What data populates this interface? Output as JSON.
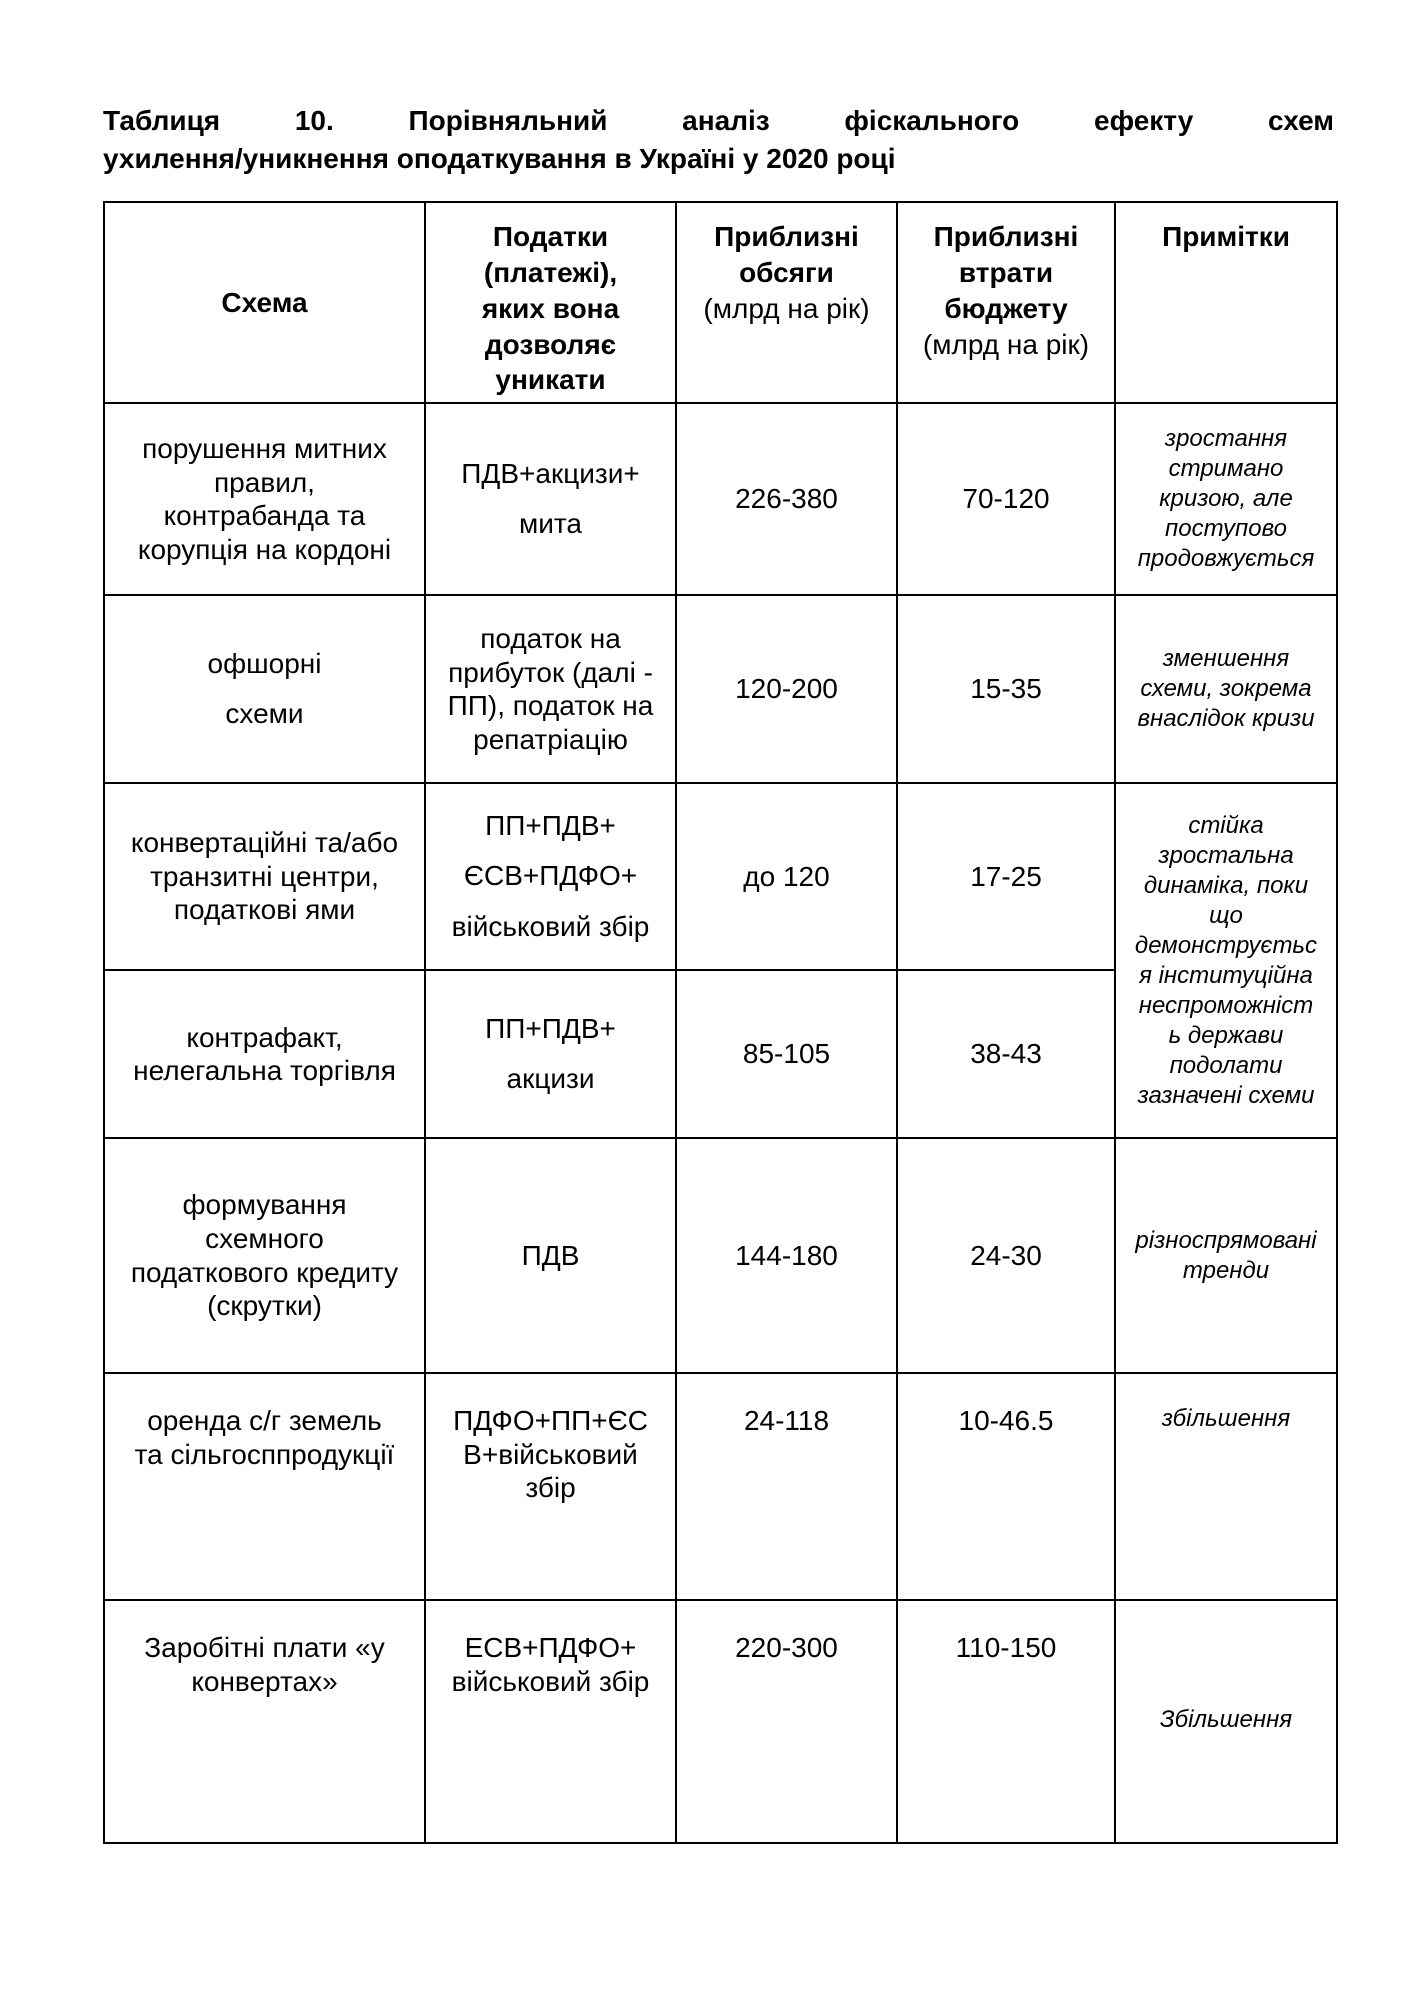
{
  "doc": {
    "title_line1": "Таблиця 10. Порівняльний аналіз фіскального ефекту схем",
    "title_line2": "ухилення/уникнення оподаткування в Україні у 2020 році"
  },
  "table": {
    "headers": {
      "scheme": "Схема",
      "taxes": "Податки\n(платежі),\nяких вона\nдозволяє\nуникати",
      "volumes": "Приблизні\nобсяги",
      "volumes_unit": "(млрд на рік)",
      "losses": "Приблизні\nвтрати\nбюджету",
      "losses_unit": "(млрд на рік)",
      "notes": "Примітки"
    },
    "rows": [
      {
        "scheme": "порушення митних\nправил,\nконтрабанда та\nкорупція на кордоні",
        "taxes": "ПДВ+акцизи+\nмита",
        "volume": "226-380",
        "losses": "70-120",
        "notes": "зростання\nстримано\nкризою, але\nпоступово\nпродовжується"
      },
      {
        "scheme": "офшорні\nсхеми",
        "taxes": "податок на\nприбуток (далі -\nПП), податок на\nрепатріацію",
        "volume": "120-200",
        "losses": "15-35",
        "notes": "зменшення\nсхеми, зокрема\nвнаслідок кризи"
      },
      {
        "scheme": "конвертаційні та/або\nтранзитні центри,\nподаткові ями",
        "taxes": "ПП+ПДВ+\nЄСВ+ПДФО+\nвійськовий збір",
        "volume": "до 120",
        "losses": "17-25",
        "notes": "стійка\nзростальна\nдинаміка, поки\nщо\nдемонструєтьс\nя інституційна\nнеспроможніст\nь держави\nподолати\nзазначені схеми"
      },
      {
        "scheme": "контрафакт,\nнелегальна торгівля",
        "taxes": "ПП+ПДВ+\nакцизи",
        "volume": "85-105",
        "losses": "38-43"
      },
      {
        "scheme": "формування\nсхемного\nподаткового кредиту\n(скрутки)",
        "taxes": "ПДВ",
        "volume": "144-180",
        "losses": "24-30",
        "notes": "різноспрямовані\nтренди"
      },
      {
        "scheme": "оренда с/г земель\nта сільгосппродукції",
        "taxes": "ПДФО+ПП+ЄС\nВ+військовий\nзбір",
        "volume": "24-118",
        "losses": "10-46.5",
        "notes": "збільшення"
      },
      {
        "scheme": "Заробітні плати «у\nконвертах»",
        "taxes": "ЕСВ+ПДФО+\nвійськовий збір",
        "volume": "220-300",
        "losses": "110-150",
        "notes": "Збільшення"
      }
    ]
  }
}
